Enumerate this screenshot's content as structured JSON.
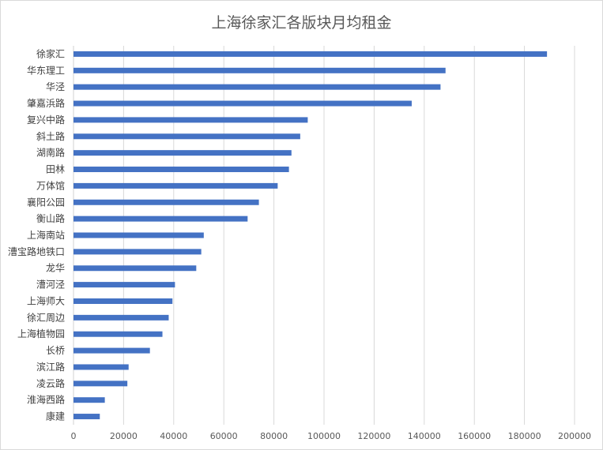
{
  "chart_data": {
    "type": "bar",
    "orientation": "horizontal",
    "title": "上海徐家汇各版块月均租金",
    "categories": [
      "徐家汇",
      "华东理工",
      "华泾",
      "肇嘉浜路",
      "复兴中路",
      "斜土路",
      "湖南路",
      "田林",
      "万体馆",
      "襄阳公园",
      "衡山路",
      "上海南站",
      "漕宝路地铁口",
      "龙华",
      "漕河泾",
      "上海师大",
      "徐汇周边",
      "上海植物园",
      "长桥",
      "滨江路",
      "凌云路",
      "淮海西路",
      "康建"
    ],
    "values": [
      189000,
      148500,
      146500,
      135000,
      93500,
      90500,
      87000,
      86000,
      81500,
      74000,
      69500,
      52000,
      51000,
      49000,
      40500,
      39500,
      38000,
      35500,
      30500,
      22000,
      21500,
      12500,
      10500
    ],
    "xlim": [
      0,
      200000
    ],
    "xticks": [
      "0",
      "20000",
      "40000",
      "60000",
      "80000",
      "100000",
      "120000",
      "140000",
      "160000",
      "180000",
      "200000"
    ],
    "grid": "vertical",
    "bar_color": "#4472c4",
    "grid_color": "#d9d9d9",
    "legend": "none"
  }
}
